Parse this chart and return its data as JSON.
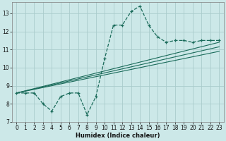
{
  "xlabel": "Humidex (Indice chaleur)",
  "bg_color": "#cce8e8",
  "grid_color": "#aacccc",
  "line_color": "#1a6b5a",
  "xlim": [
    -0.5,
    23.5
  ],
  "ylim": [
    7.0,
    13.6
  ],
  "xticks": [
    0,
    1,
    2,
    3,
    4,
    5,
    6,
    7,
    8,
    9,
    10,
    11,
    12,
    13,
    14,
    15,
    16,
    17,
    18,
    19,
    20,
    21,
    22,
    23
  ],
  "yticks": [
    7,
    8,
    9,
    10,
    11,
    12,
    13
  ],
  "curve1_x": [
    0,
    1,
    2,
    3,
    4,
    5,
    6,
    7,
    8,
    9,
    10,
    11,
    12,
    13,
    14,
    15,
    16,
    17,
    18,
    19,
    20,
    21,
    22,
    23
  ],
  "curve1_y": [
    8.6,
    8.6,
    8.6,
    8.0,
    7.6,
    8.4,
    8.6,
    8.6,
    7.4,
    8.4,
    10.5,
    12.35,
    12.35,
    13.1,
    13.4,
    12.35,
    11.7,
    11.4,
    11.5,
    11.5,
    11.4,
    11.5,
    11.5,
    11.5
  ],
  "line2_x": [
    0,
    23
  ],
  "line2_y": [
    8.6,
    11.4
  ],
  "line3_x": [
    0,
    23
  ],
  "line3_y": [
    8.6,
    11.15
  ],
  "line4_x": [
    0,
    23
  ],
  "line4_y": [
    8.6,
    10.9
  ]
}
